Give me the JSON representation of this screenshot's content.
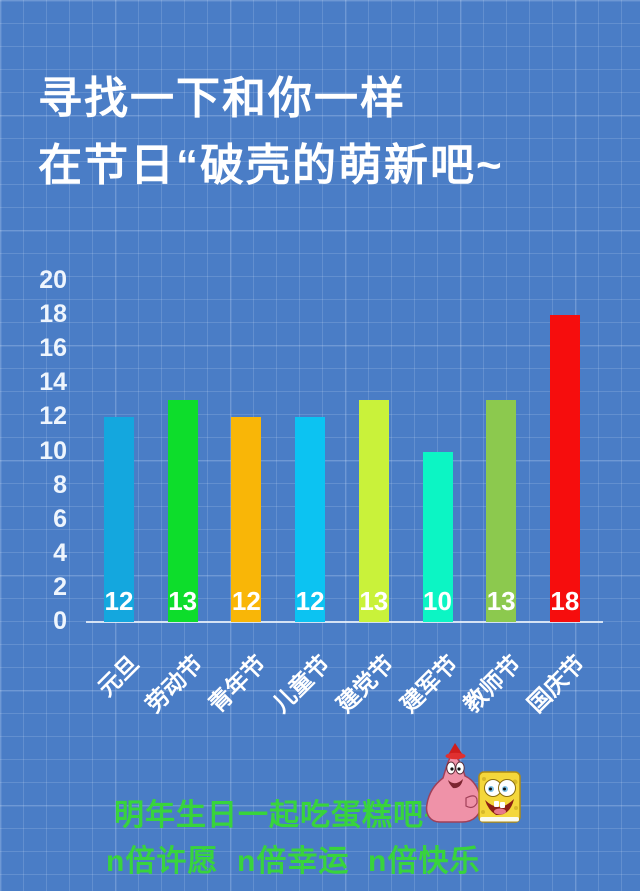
{
  "header": {
    "title_line1": "寻找一下和你一样",
    "title_line2": "在节日“破壳的萌新吧~"
  },
  "footer": {
    "line1": "明年生日一起吃蛋糕吧~",
    "line2": "n倍许愿  n倍幸运  n倍快乐",
    "sticker_icons": [
      "patrick-star-sticker",
      "spongebob-sticker"
    ]
  },
  "colors": {
    "background": "#4a7dc6",
    "grid_line": "rgba(215,231,250,0.17)",
    "title_text": "#ffffff",
    "axis_text": "#eef5fd",
    "bar_value_text": "#ffffff",
    "footer_text": "#38d43c",
    "baseline": "rgba(235,242,250,0.85)"
  },
  "chart_data": {
    "type": "bar",
    "title": "",
    "xlabel": "",
    "ylabel": "",
    "categories": [
      "元旦",
      "劳动节",
      "青年节",
      "儿童节",
      "建党节",
      "建军节",
      "教师节",
      "国庆节"
    ],
    "values": [
      12,
      13,
      12,
      12,
      13,
      10,
      13,
      18
    ],
    "bar_colors": [
      "#14a7de",
      "#0ddd2b",
      "#f9b607",
      "#0cc3f2",
      "#c9f23a",
      "#0cf5c4",
      "#8cc94e",
      "#f60d0d"
    ],
    "ylim": [
      0,
      20
    ],
    "ytick_step": 2,
    "yticks": [
      0,
      2,
      4,
      6,
      8,
      10,
      12,
      14,
      16,
      18,
      20
    ],
    "bar_value_labels_shown": true,
    "x_tick_rotation_deg": 45,
    "legend": "none",
    "grid": "decorative graph-paper background only"
  }
}
